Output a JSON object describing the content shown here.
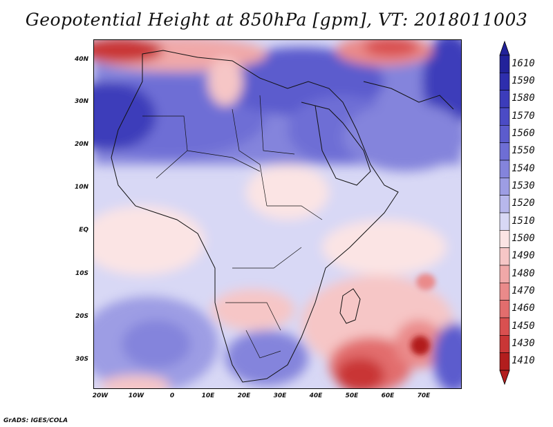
{
  "title": "Geopotential Height at 850hPa [gpm], VT: 2018011003",
  "footer": "GrADS: IGES/COLA",
  "lat_labels": [
    "40N",
    "30N",
    "20N",
    "10N",
    "EQ",
    "10S",
    "20S",
    "30S"
  ],
  "lon_labels": [
    "20W",
    "10W",
    "0",
    "10E",
    "20E",
    "30E",
    "40E",
    "50E",
    "60E",
    "70E"
  ],
  "colorbar": {
    "labels": [
      "1610",
      "1590",
      "1580",
      "1570",
      "1560",
      "1550",
      "1540",
      "1530",
      "1520",
      "1510",
      "1500",
      "1490",
      "1480",
      "1470",
      "1460",
      "1450",
      "1430",
      "1410"
    ],
    "colors": [
      "#22229a",
      "#2e2ead",
      "#3c3cba",
      "#4b4bc5",
      "#5c5ccd",
      "#6e6ed5",
      "#8484dc",
      "#9d9de4",
      "#b7b7ec",
      "#d8d8f5",
      "#fbe4e4",
      "#f6c6c6",
      "#f0a8a8",
      "#ea8a8a",
      "#e26d6d",
      "#d95050",
      "#c93636",
      "#b21e1e"
    ]
  }
}
